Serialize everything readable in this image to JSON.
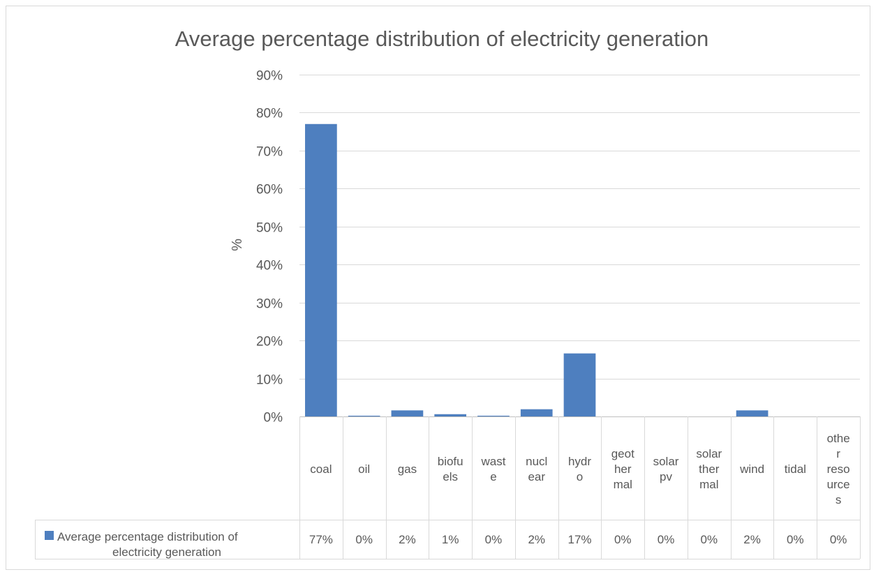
{
  "chart_data": {
    "type": "bar",
    "title": "Average percentage distribution of electricity generation",
    "ylabel": "%",
    "ylim": [
      0,
      90
    ],
    "ytick_step": 10,
    "ytick_suffix": "%",
    "grid": true,
    "categories": [
      "coal",
      "oil",
      "gas",
      "biofuels",
      "waste",
      "nuclear",
      "hydro",
      "geothermal",
      "solar pv",
      "solar thermal",
      "wind",
      "tidal",
      "other resources"
    ],
    "category_display": [
      [
        "coal"
      ],
      [
        "oil"
      ],
      [
        "gas"
      ],
      [
        "biofu",
        "els"
      ],
      [
        "wast",
        "e"
      ],
      [
        "nucl",
        "ear"
      ],
      [
        "hydr",
        "o"
      ],
      [
        "geot",
        "her",
        "mal"
      ],
      [
        "solar",
        "pv"
      ],
      [
        "solar",
        "ther",
        "mal"
      ],
      [
        "wind"
      ],
      [
        "tidal"
      ],
      [
        "othe",
        "r",
        "reso",
        "urce",
        "s"
      ]
    ],
    "series": [
      {
        "name": "Average percentage distribution of electricity generation",
        "name_lines": [
          "Average percentage distribution of",
          "electricity generation"
        ],
        "values": [
          77.0,
          0.2,
          1.6,
          0.6,
          0.2,
          1.9,
          16.6,
          0.0,
          0.0,
          0.0,
          1.6,
          0.0,
          0.0
        ],
        "table_labels": [
          "77%",
          "0%",
          "2%",
          "1%",
          "0%",
          "2%",
          "17%",
          "0%",
          "0%",
          "0%",
          "2%",
          "0%",
          "0%"
        ],
        "color": "#4e7fbf"
      }
    ],
    "legend": "data-table",
    "colors": {
      "bar": "#4e7fbf",
      "grid": "#d9d9d9",
      "text": "#595959",
      "frame": "#d9d9d9"
    }
  }
}
